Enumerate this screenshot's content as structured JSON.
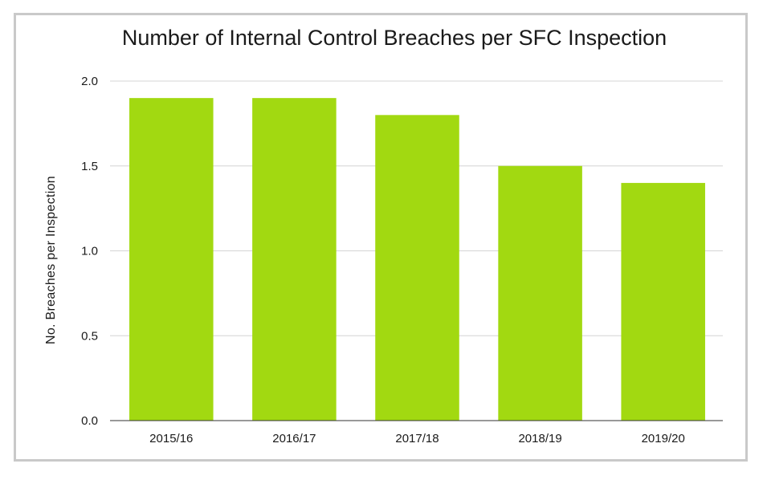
{
  "chart_data": {
    "type": "bar",
    "title": "Number of Internal Control Breaches per SFC Inspection",
    "xlabel": "",
    "ylabel": "No. Breaches per Inspection",
    "categories": [
      "2015/16",
      "2016/17",
      "2017/18",
      "2018/19",
      "2019/20"
    ],
    "values": [
      1.9,
      1.9,
      1.8,
      1.5,
      1.4
    ],
    "ylim": [
      0,
      2
    ],
    "yticks": [
      "0.0",
      "0.5",
      "1.0",
      "1.5",
      "2.0"
    ],
    "grid": true,
    "legend": "none",
    "bar_color": "#a2d911",
    "grid_color": "#d4d4d4"
  }
}
